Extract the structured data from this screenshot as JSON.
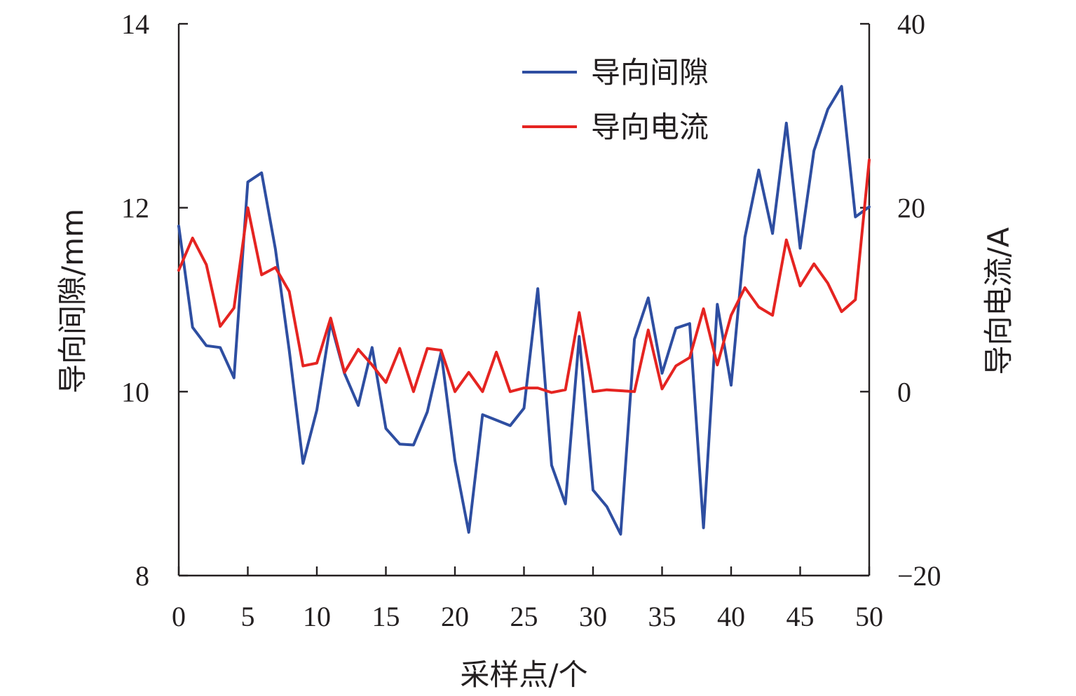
{
  "chart_data": {
    "type": "line",
    "xlabel": "采样点/个",
    "ylabel_left": "导向间隙/mm",
    "ylabel_right": "导向电流/A",
    "xlim": [
      0,
      50
    ],
    "ylim_left": [
      8,
      14
    ],
    "ylim_right": [
      -20,
      40
    ],
    "x_ticks": [
      0,
      5,
      10,
      15,
      20,
      25,
      30,
      35,
      40,
      45,
      50
    ],
    "y_left_ticks": [
      8,
      10,
      12,
      14
    ],
    "y_right_ticks": [
      -20,
      0,
      20,
      40
    ],
    "x_tick_labels": [
      "0",
      "5",
      "10",
      "15",
      "20",
      "25",
      "30",
      "35",
      "40",
      "45",
      "50"
    ],
    "y_left_tick_labels": [
      "8",
      "10",
      "12",
      "14"
    ],
    "y_right_tick_labels": [
      "−20",
      "0",
      "20",
      "40"
    ],
    "grid": false,
    "legend_position": "top-right",
    "series": [
      {
        "name": "导向间隙",
        "axis": "left",
        "color": "#2e4ea1",
        "x": [
          0,
          1,
          2,
          3,
          4,
          5,
          6,
          7,
          8,
          9,
          10,
          11,
          12,
          13,
          14,
          15,
          16,
          17,
          18,
          19,
          20,
          21,
          22,
          23,
          24,
          25,
          26,
          27,
          28,
          29,
          30,
          31,
          32,
          33,
          34,
          35,
          36,
          37,
          38,
          39,
          40,
          41,
          42,
          43,
          44,
          45,
          46,
          47,
          48,
          49,
          50
        ],
        "values": [
          11.8,
          10.7,
          10.5,
          10.48,
          10.15,
          12.28,
          12.38,
          11.55,
          10.45,
          9.22,
          9.8,
          10.75,
          10.2,
          9.85,
          10.48,
          9.6,
          9.43,
          9.42,
          9.78,
          10.43,
          9.25,
          8.47,
          9.75,
          9.69,
          9.63,
          9.82,
          11.12,
          9.2,
          8.78,
          10.6,
          8.93,
          8.75,
          8.45,
          10.57,
          11.02,
          10.2,
          10.69,
          10.74,
          8.52,
          10.95,
          10.07,
          11.68,
          12.41,
          11.72,
          12.92,
          11.56,
          12.62,
          13.07,
          13.32,
          11.9,
          12.01
        ]
      },
      {
        "name": "导向电流",
        "axis": "right",
        "color": "#e52421",
        "x": [
          0,
          1,
          2,
          3,
          4,
          5,
          6,
          7,
          8,
          9,
          10,
          11,
          12,
          13,
          14,
          15,
          16,
          17,
          18,
          19,
          20,
          21,
          22,
          23,
          24,
          25,
          26,
          27,
          28,
          29,
          30,
          31,
          32,
          33,
          34,
          35,
          36,
          37,
          38,
          39,
          40,
          41,
          42,
          43,
          44,
          45,
          46,
          47,
          48,
          49,
          50
        ],
        "values": [
          13.2,
          16.7,
          13.8,
          7.1,
          9.1,
          20,
          12.7,
          13.5,
          10.9,
          2.8,
          3.1,
          8,
          2.1,
          4.6,
          2.9,
          1,
          4.7,
          0,
          4.7,
          4.5,
          0,
          2.1,
          0,
          4.3,
          0,
          0.4,
          0.4,
          -0.1,
          0.2,
          8.6,
          0,
          0.2,
          0.1,
          0,
          6.7,
          0.3,
          2.8,
          3.7,
          9,
          2.9,
          8.3,
          11.3,
          9.2,
          8.3,
          16.5,
          11.5,
          13.9,
          11.8,
          8.7,
          10,
          25.2
        ]
      }
    ]
  }
}
